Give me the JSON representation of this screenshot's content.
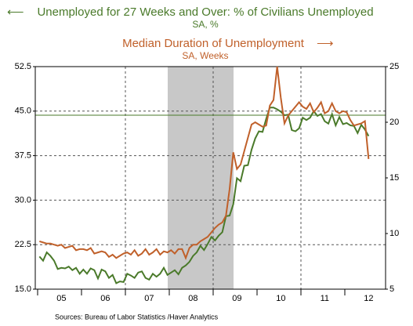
{
  "chart_data": {
    "type": "line",
    "series": [
      {
        "name": "Unemployed for 27 Weeks and Over: % of Civilians Unemployed",
        "unit": "SA, %",
        "color": "#4a7a2a",
        "axis": "y",
        "values": [
          20.5,
          19.8,
          21.2,
          20.6,
          19.8,
          18.4,
          18.6,
          18.5,
          18.8,
          18.2,
          18.6,
          17.6,
          18.3,
          17.6,
          18.5,
          18.2,
          16.8,
          18.3,
          18.0,
          16.9,
          17.4,
          16.0,
          16.3,
          16.2,
          17.6,
          17.3,
          16.9,
          17.8,
          18.0,
          16.9,
          16.6,
          17.6,
          17.1,
          17.6,
          18.6,
          17.4,
          17.8,
          18.2,
          17.5,
          18.6,
          19.0,
          19.6,
          20.6,
          21.2,
          22.3,
          21.6,
          22.6,
          23.8,
          23.2,
          24.0,
          24.6,
          27.3,
          27.4,
          29.3,
          33.7,
          33.2,
          35.8,
          35.9,
          38.5,
          40.4,
          41.6,
          41.5,
          43.7,
          45.6,
          45.6,
          45.3,
          44.9,
          44.3,
          44.4,
          41.8,
          41.6,
          42.1,
          43.9,
          43.5,
          43.9,
          45.0,
          44.2,
          44.5,
          43.3,
          42.9,
          44.5,
          42.6,
          44.0,
          42.8,
          43.0,
          42.6,
          42.5,
          41.3,
          42.7,
          41.9,
          40.8
        ]
      },
      {
        "name": "Median Duration of Unemployment",
        "unit": "SA, Weeks",
        "color": "#c0602a",
        "axis": "y2",
        "values": [
          9.3,
          9.2,
          9.1,
          9.1,
          9.0,
          8.9,
          9.0,
          8.7,
          8.8,
          8.9,
          8.5,
          8.6,
          8.6,
          8.5,
          8.7,
          8.2,
          8.3,
          8.4,
          8.3,
          7.9,
          8.1,
          7.8,
          8.0,
          8.2,
          8.3,
          8.1,
          8.5,
          8.0,
          8.2,
          8.6,
          8.1,
          8.3,
          8.6,
          8.1,
          8.4,
          8.3,
          8.5,
          8.2,
          8.6,
          8.6,
          7.8,
          8.7,
          9.0,
          9.0,
          9.3,
          9.5,
          9.7,
          10.1,
          10.5,
          10.8,
          11.0,
          11.6,
          14.0,
          17.3,
          15.8,
          16.2,
          17.4,
          18.6,
          19.8,
          20.0,
          19.8,
          19.6,
          19.7,
          21.5,
          22.0,
          25.0,
          22.2,
          19.9,
          20.6,
          21.0,
          21.4,
          21.8,
          21.4,
          21.2,
          21.7,
          20.9,
          21.3,
          21.8,
          20.8,
          21.0,
          21.7,
          21.0,
          20.8,
          21.0,
          20.9,
          20.2,
          19.7,
          19.8,
          19.9,
          20.1,
          16.7
        ]
      }
    ],
    "categories": [
      null,
      null,
      null,
      null,
      null,
      null,
      "05",
      null,
      null,
      null,
      null,
      null,
      null,
      null,
      null,
      null,
      null,
      null,
      "06",
      null,
      null,
      null,
      null,
      null,
      null,
      null,
      null,
      null,
      null,
      null,
      "07",
      null,
      null,
      null,
      null,
      null,
      null,
      null,
      null,
      null,
      null,
      null,
      "08",
      null,
      null,
      null,
      null,
      null,
      null,
      null,
      null,
      null,
      null,
      null,
      "09",
      null,
      null,
      null,
      null,
      null,
      null,
      null,
      null,
      null,
      null,
      null,
      "10",
      null,
      null,
      null,
      null,
      null,
      null,
      null,
      null,
      null,
      null,
      null,
      "11",
      null,
      null,
      null,
      null,
      null,
      null,
      null,
      null,
      null,
      null,
      null,
      "12"
    ],
    "ylim": [
      15,
      52.5
    ],
    "yticks": [
      {
        "value": 15,
        "label": "15.0"
      },
      22.5,
      {
        "value": 30,
        "label": "30.0"
      },
      37.5,
      {
        "value": 45,
        "label": "45.0"
      },
      52.5
    ],
    "y2lim": [
      5,
      25
    ],
    "y2ticks": [
      5,
      10,
      15,
      20,
      25
    ],
    "grid": true,
    "source": "Sources:  Bureau of Labor Statistics /Haver Analytics"
  }
}
